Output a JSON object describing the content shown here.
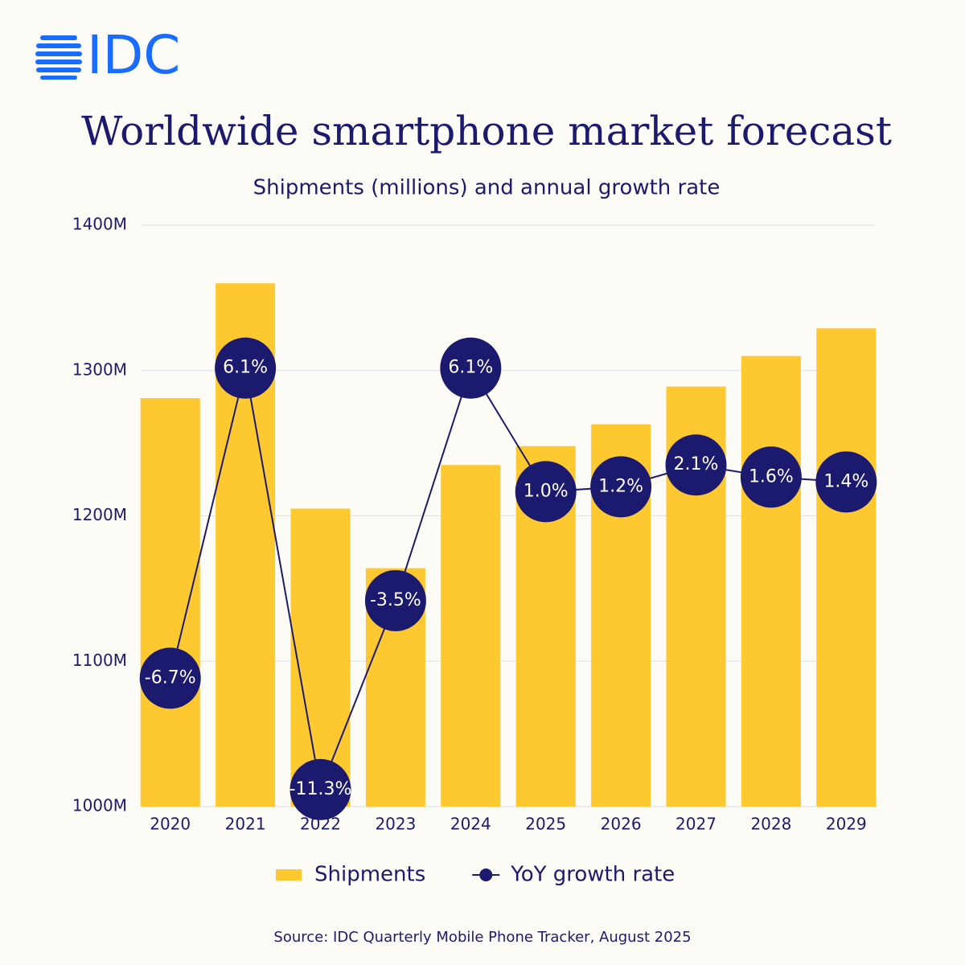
{
  "logo": "IDC",
  "chart_data": {
    "type": "bar_line",
    "title": "Worldwide smartphone market forecast",
    "subtitle": "Shipments (millions) and annual growth rate",
    "source": "Source:  IDC Quarterly Mobile Phone Tracker, August 2025",
    "categories": [
      "2020",
      "2021",
      "2022",
      "2023",
      "2024",
      "2025",
      "2026",
      "2027",
      "2028",
      "2029"
    ],
    "series": [
      {
        "name": "Shipments",
        "type": "bar",
        "color": "#fdc830",
        "values": [
          1281,
          1360,
          1205,
          1164,
          1235,
          1248,
          1263,
          1289,
          1310,
          1329
        ]
      },
      {
        "name": "YoY growth rate",
        "type": "line",
        "axis": "y2",
        "color": "#1c1a6e",
        "values": [
          -6.7,
          6.1,
          -11.3,
          -3.5,
          6.1,
          1.0,
          1.2,
          2.1,
          1.6,
          1.4
        ],
        "value_labels": [
          "-6.7%",
          "6.1%",
          "-11.3%",
          "-3.5%",
          "6.1%",
          "1.0%",
          "1.2%",
          "2.1%",
          "1.6%",
          "1.4%"
        ]
      }
    ],
    "ylim": [
      1000,
      1400
    ],
    "yticks": [
      {
        "value": 1000,
        "label": "1000M"
      },
      {
        "value": 1100,
        "label": "1100M"
      },
      {
        "value": 1200,
        "label": "1200M"
      },
      {
        "value": 1300,
        "label": "1300M"
      },
      {
        "value": 1400,
        "label": "1400M"
      }
    ],
    "y2lim": [
      -12,
      12
    ],
    "grid": true,
    "legend": "bottom"
  }
}
